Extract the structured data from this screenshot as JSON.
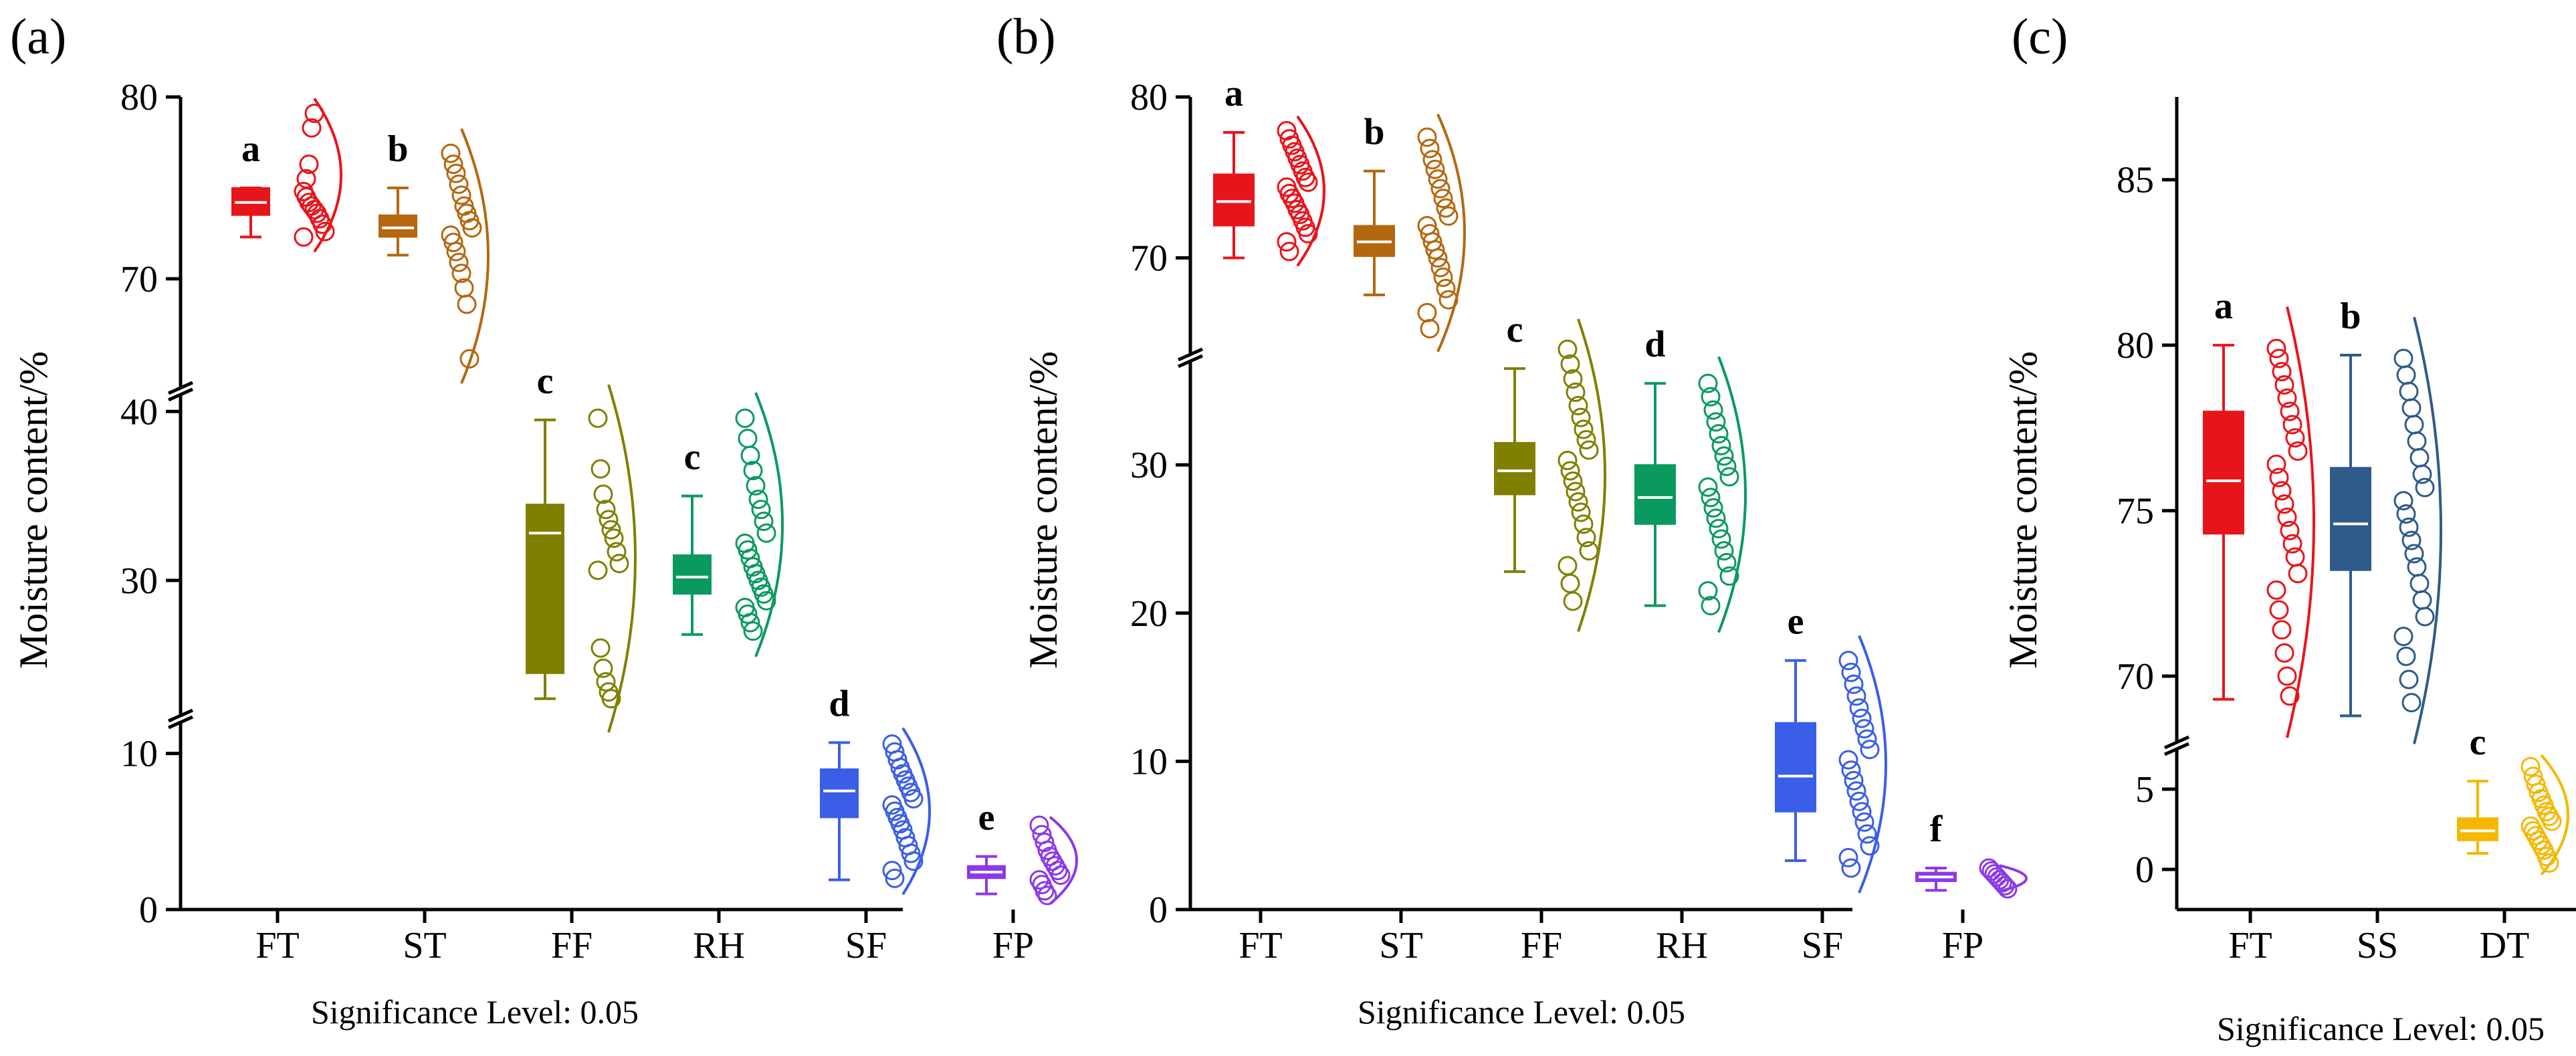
{
  "figure": {
    "footer": "Significance Level: 0.05"
  },
  "chart_data": [
    {
      "panel": "(a)",
      "type": "box",
      "ylabel": "Moisture content/%",
      "segments": [
        {
          "ylim": [
            0,
            12
          ],
          "ticks": [
            0,
            10
          ]
        },
        {
          "ylim": [
            22,
            41
          ],
          "ticks": [
            30,
            40
          ]
        },
        {
          "ylim": [
            64,
            80
          ],
          "ticks": [
            70,
            80
          ]
        }
      ],
      "categories": [
        "FT",
        "ST",
        "FF",
        "RH",
        "SF",
        "FP"
      ],
      "groups": [
        {
          "cat": "FT",
          "color": "#e8141b",
          "min": 72.3,
          "q1": 73.5,
          "median": 74.2,
          "q3": 75.0,
          "max": 75.0,
          "letter": "a",
          "points": [
            74.8,
            74.5,
            74.2,
            74.0,
            73.8,
            73.6,
            73.3,
            73.0,
            72.6,
            72.3,
            75.5,
            76.3,
            78.3,
            79.1
          ]
        },
        {
          "cat": "ST",
          "color": "#b5670f",
          "min": 71.3,
          "q1": 72.3,
          "median": 72.8,
          "q3": 73.5,
          "max": 75.0,
          "letter": "b",
          "points": [
            76.9,
            76.3,
            75.8,
            75.2,
            74.6,
            74.0,
            73.6,
            73.2,
            72.8,
            72.4,
            72.0,
            71.5,
            70.9,
            70.3,
            69.5,
            68.6,
            65.6
          ]
        },
        {
          "cat": "FF",
          "color": "#808000",
          "min": 23.0,
          "q1": 24.5,
          "median": 32.8,
          "q3": 34.5,
          "max": 39.5,
          "letter": "c",
          "points": [
            39.6,
            36.6,
            35.1,
            34.2,
            33.6,
            33.0,
            32.5,
            31.7,
            31.0,
            30.6,
            26.0,
            24.8,
            24.0,
            23.4,
            23.0
          ]
        },
        {
          "cat": "RH",
          "color": "#0a9a5f",
          "min": 26.8,
          "q1": 29.2,
          "median": 30.2,
          "q3": 31.5,
          "max": 35.0,
          "letter": "c",
          "points": [
            39.6,
            38.4,
            37.4,
            36.5,
            35.6,
            34.8,
            34.2,
            33.5,
            32.8,
            32.2,
            31.8,
            31.3,
            30.8,
            30.4,
            30.0,
            29.6,
            29.2,
            28.8,
            28.4,
            28.0,
            27.5,
            27.0
          ]
        },
        {
          "cat": "SF",
          "color": "#3a5ee8",
          "min": 1.9,
          "q1": 5.9,
          "median": 7.6,
          "q3": 9.0,
          "max": 10.7,
          "letter": "d",
          "points": [
            10.6,
            10.1,
            9.6,
            9.1,
            8.7,
            8.3,
            7.9,
            7.5,
            7.1,
            6.7,
            6.3,
            5.9,
            5.5,
            5.1,
            4.6,
            4.1,
            3.6,
            3.1,
            2.5,
            2.0
          ]
        },
        {
          "cat": "FP",
          "color": "#8a3ae8",
          "min": 1.0,
          "q1": 2.0,
          "median": 2.4,
          "q3": 2.8,
          "max": 3.4,
          "letter": "e",
          "points": [
            5.4,
            4.8,
            4.3,
            3.8,
            3.4,
            3.1,
            2.8,
            2.5,
            2.2,
            1.9,
            1.6,
            1.2,
            0.9
          ]
        }
      ]
    },
    {
      "panel": "(b)",
      "type": "box",
      "ylabel": "Moisture content/%",
      "segments": [
        {
          "ylim": [
            0,
            37
          ],
          "ticks": [
            0,
            10,
            20,
            30
          ]
        },
        {
          "ylim": [
            64,
            80
          ],
          "ticks": [
            70,
            80
          ]
        }
      ],
      "categories": [
        "FT",
        "ST",
        "FF",
        "RH",
        "SF",
        "FP"
      ],
      "groups": [
        {
          "cat": "FT",
          "color": "#e8141b",
          "min": 70.0,
          "q1": 72.0,
          "median": 73.5,
          "q3": 75.2,
          "max": 77.8,
          "letter": "a",
          "points": [
            77.9,
            77.4,
            77.0,
            76.6,
            76.2,
            75.8,
            75.4,
            75.0,
            74.7,
            74.4,
            74.0,
            73.7,
            73.4,
            73.0,
            72.7,
            72.3,
            71.9,
            71.5,
            71.0,
            70.4
          ]
        },
        {
          "cat": "ST",
          "color": "#b5670f",
          "min": 67.7,
          "q1": 70.1,
          "median": 71.0,
          "q3": 72.0,
          "max": 75.4,
          "letter": "b",
          "points": [
            77.5,
            76.8,
            76.1,
            75.5,
            74.9,
            74.3,
            73.7,
            73.1,
            72.6,
            72.0,
            71.5,
            71.0,
            70.5,
            70.0,
            69.4,
            68.8,
            68.1,
            67.4,
            66.6,
            65.6
          ]
        },
        {
          "cat": "FF",
          "color": "#808000",
          "min": 22.8,
          "q1": 28.0,
          "median": 29.6,
          "q3": 31.5,
          "max": 36.5,
          "letter": "c",
          "points": [
            37.8,
            36.8,
            35.8,
            34.9,
            34.0,
            33.2,
            32.4,
            31.7,
            31.0,
            30.3,
            29.6,
            28.9,
            28.2,
            27.5,
            26.8,
            26.0,
            25.1,
            24.2,
            23.2,
            22.0,
            20.8
          ]
        },
        {
          "cat": "RH",
          "color": "#0a9a5f",
          "min": 20.5,
          "q1": 26.0,
          "median": 27.8,
          "q3": 30.0,
          "max": 35.5,
          "letter": "d",
          "points": [
            35.5,
            34.6,
            33.7,
            32.9,
            32.1,
            31.3,
            30.6,
            29.9,
            29.2,
            28.5,
            27.8,
            27.1,
            26.4,
            25.7,
            25.0,
            24.2,
            23.4,
            22.5,
            21.5,
            20.5
          ]
        },
        {
          "cat": "SF",
          "color": "#3a5ee8",
          "min": 3.3,
          "q1": 6.6,
          "median": 9.0,
          "q3": 12.6,
          "max": 16.8,
          "letter": "e",
          "points": [
            16.8,
            16.0,
            15.2,
            14.4,
            13.6,
            12.9,
            12.2,
            11.5,
            10.8,
            10.1,
            9.4,
            8.7,
            8.0,
            7.3,
            6.6,
            5.9,
            5.1,
            4.3,
            3.5,
            2.8
          ]
        },
        {
          "cat": "FP",
          "color": "#8a3ae8",
          "min": 1.3,
          "q1": 1.9,
          "median": 2.2,
          "q3": 2.5,
          "max": 2.8,
          "letter": "f",
          "points": [
            2.8,
            2.6,
            2.4,
            2.2,
            2.0,
            1.8,
            1.6,
            1.4
          ]
        }
      ]
    },
    {
      "panel": "(c)",
      "type": "box",
      "ylabel": "Moisture content/%",
      "segments": [
        {
          "ylim": [
            -2.5,
            7.5
          ],
          "ticks": [
            0,
            5
          ]
        },
        {
          "ylim": [
            68,
            87.5
          ],
          "ticks": [
            70,
            75,
            80,
            85
          ]
        }
      ],
      "categories": [
        "FT",
        "SS",
        "DT"
      ],
      "groups": [
        {
          "cat": "FT",
          "color": "#e8141b",
          "min": 69.3,
          "q1": 74.3,
          "median": 75.9,
          "q3": 78.0,
          "max": 80.0,
          "letter": "a",
          "points": [
            79.9,
            79.6,
            79.2,
            78.8,
            78.4,
            78.0,
            77.6,
            77.2,
            76.8,
            76.4,
            76.0,
            75.6,
            75.2,
            74.8,
            74.4,
            74.0,
            73.6,
            73.1,
            72.6,
            72.0,
            71.4,
            70.7,
            70.0,
            69.4
          ]
        },
        {
          "cat": "SS",
          "color": "#2e5b8a",
          "min": 68.8,
          "q1": 73.2,
          "median": 74.6,
          "q3": 76.3,
          "max": 79.7,
          "letter": "b",
          "points": [
            79.6,
            79.1,
            78.6,
            78.1,
            77.6,
            77.1,
            76.6,
            76.1,
            75.7,
            75.3,
            74.9,
            74.5,
            74.1,
            73.7,
            73.3,
            72.8,
            72.3,
            71.8,
            71.2,
            70.6,
            69.9,
            69.2
          ]
        },
        {
          "cat": "DT",
          "color": "#f5b800",
          "min": 1.0,
          "q1": 1.8,
          "median": 2.4,
          "q3": 3.2,
          "max": 5.5,
          "letter": "c",
          "points": [
            6.4,
            5.8,
            5.3,
            4.8,
            4.4,
            4.0,
            3.6,
            3.3,
            3.0,
            2.7,
            2.4,
            2.1,
            1.8,
            1.5,
            1.2,
            0.8,
            0.4
          ]
        }
      ]
    }
  ]
}
